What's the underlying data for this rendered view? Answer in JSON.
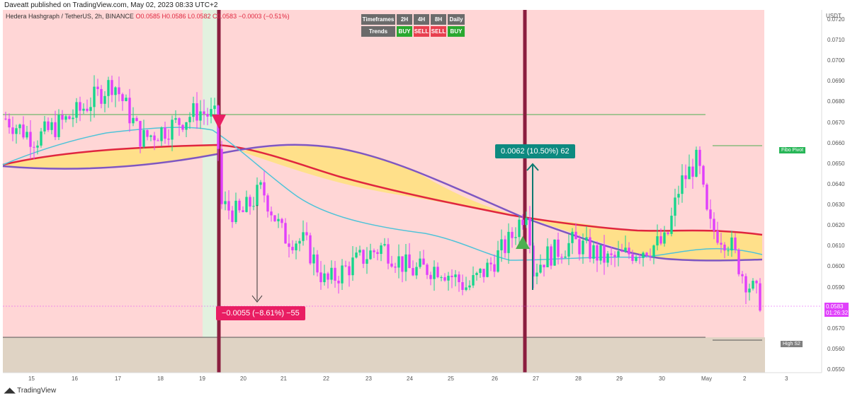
{
  "header": {
    "publisher": "Daveatt published on TradingView.com, May 02, 2023 08:33 UTC+2"
  },
  "symbol": {
    "name": "Hedera Hashgraph / TetherUS, 2h, BINANCE",
    "ohlc": "O0.0585 H0.0586 L0.0582 C0.0583 −0.0003 (−0.51%)"
  },
  "footer": {
    "logo": "TradingView"
  },
  "axis": {
    "currency": "USDT",
    "y_ticks": [
      "0.0720",
      "0.0710",
      "0.0700",
      "0.0690",
      "0.0680",
      "0.0670",
      "0.0660",
      "0.0650",
      "0.0640",
      "0.0630",
      "0.0620",
      "0.0610",
      "0.0600",
      "0.0590",
      "0.0580",
      "0.0570",
      "0.0560",
      "0.0550"
    ],
    "x_ticks": [
      "15",
      "16",
      "17",
      "18",
      "19",
      "20",
      "21",
      "22",
      "23",
      "24",
      "25",
      "26",
      "27",
      "28",
      "29",
      "30",
      "May",
      "2",
      "3"
    ]
  },
  "timeframes": {
    "header_label": "Timeframes",
    "trends_label": "Trends",
    "columns": [
      {
        "tf": "2H",
        "trend": "BUY"
      },
      {
        "tf": "4H",
        "trend": "SELL"
      },
      {
        "tf": "8H",
        "trend": "SELL"
      },
      {
        "tf": "Daily",
        "trend": "BUY"
      }
    ]
  },
  "annotations": {
    "down_move": "−0.0055 (−8.61%) −55",
    "up_move": "0.0062 (10.50%) 62",
    "fibo_label": "Fibo Pivot",
    "highs2_label": "High S2"
  },
  "price_tags": {
    "last_price": "0.0583",
    "countdown": "01:26:32"
  },
  "colors": {
    "background_zone": "#ffd6d6",
    "cloud": "#ffe08a",
    "bull_candle": "#16d68c",
    "bear_candle": "#e040fb",
    "ma_red": "#e0263f",
    "ma_purple": "#7e57c2",
    "ma_cyan": "#4fc3d8",
    "signal_line": "#8b1e3f"
  },
  "chart_data": {
    "type": "candlestick",
    "ylim": [
      0.055,
      0.0725
    ],
    "levels": {
      "fibo_pivot": 0.0665,
      "high_s2": 0.0566,
      "horizontal_green": 0.0681,
      "lower_box_top": 0.0568
    },
    "signals": [
      {
        "type": "sell",
        "date": "Apr 19",
        "price": 0.0681
      },
      {
        "type": "buy",
        "date": "Apr 26",
        "price": 0.0614
      }
    ],
    "key_prices": [
      {
        "date": "Apr 15",
        "close": 0.067
      },
      {
        "date": "Apr 17",
        "high": 0.0698
      },
      {
        "date": "Apr 19",
        "close": 0.0676
      },
      {
        "date": "Apr 20",
        "low": 0.063
      },
      {
        "date": "Apr 22",
        "low": 0.059
      },
      {
        "date": "Apr 25",
        "low": 0.0588
      },
      {
        "date": "Apr 26",
        "high": 0.0632
      },
      {
        "date": "Apr 27",
        "low": 0.0585
      },
      {
        "date": "Apr 30",
        "high": 0.0657
      },
      {
        "date": "May 2",
        "close": 0.0583
      }
    ]
  }
}
